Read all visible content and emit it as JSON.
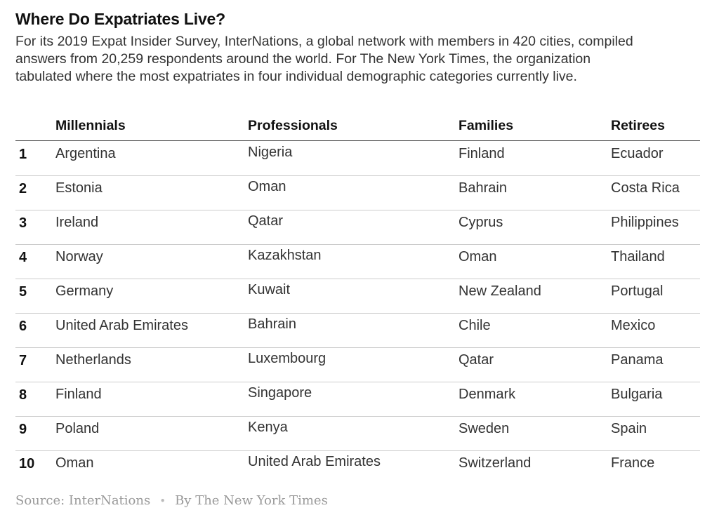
{
  "title": "Where Do Expatriates Live?",
  "intro": "For its 2019 Expat Insider Survey, InterNations, a global network with members in 420 cities, compiled answers from 20,259 respondents around the world. For The New York Times, the organization tabulated where the most expatriates in four individual demographic categories currently live.",
  "table": {
    "columns": [
      "Millennials",
      "Professionals",
      "Families",
      "Retirees"
    ],
    "rows": [
      {
        "rank": "1",
        "cells": [
          "Argentina",
          "Nigeria",
          "Finland",
          "Ecuador"
        ]
      },
      {
        "rank": "2",
        "cells": [
          "Estonia",
          "Oman",
          "Bahrain",
          "Costa Rica"
        ]
      },
      {
        "rank": "3",
        "cells": [
          "Ireland",
          "Qatar",
          "Cyprus",
          "Philippines"
        ]
      },
      {
        "rank": "4",
        "cells": [
          "Norway",
          "Kazakhstan",
          "Oman",
          "Thailand"
        ]
      },
      {
        "rank": "5",
        "cells": [
          "Germany",
          "Kuwait",
          "New Zealand",
          "Portugal"
        ]
      },
      {
        "rank": "6",
        "cells": [
          "United Arab Emirates",
          "Bahrain",
          "Chile",
          "Mexico"
        ]
      },
      {
        "rank": "7",
        "cells": [
          "Netherlands",
          "Luxembourg",
          "Qatar",
          "Panama"
        ]
      },
      {
        "rank": "8",
        "cells": [
          "Finland",
          "Singapore",
          "Denmark",
          "Bulgaria"
        ]
      },
      {
        "rank": "9",
        "cells": [
          "Poland",
          "Kenya",
          "Sweden",
          "Spain"
        ]
      },
      {
        "rank": "10",
        "cells": [
          "Oman",
          "United Arab Emirates",
          "Switzerland",
          "France"
        ]
      }
    ]
  },
  "footer": {
    "source": "Source: InterNations",
    "separator": "•",
    "byline": "By The New York Times"
  }
}
